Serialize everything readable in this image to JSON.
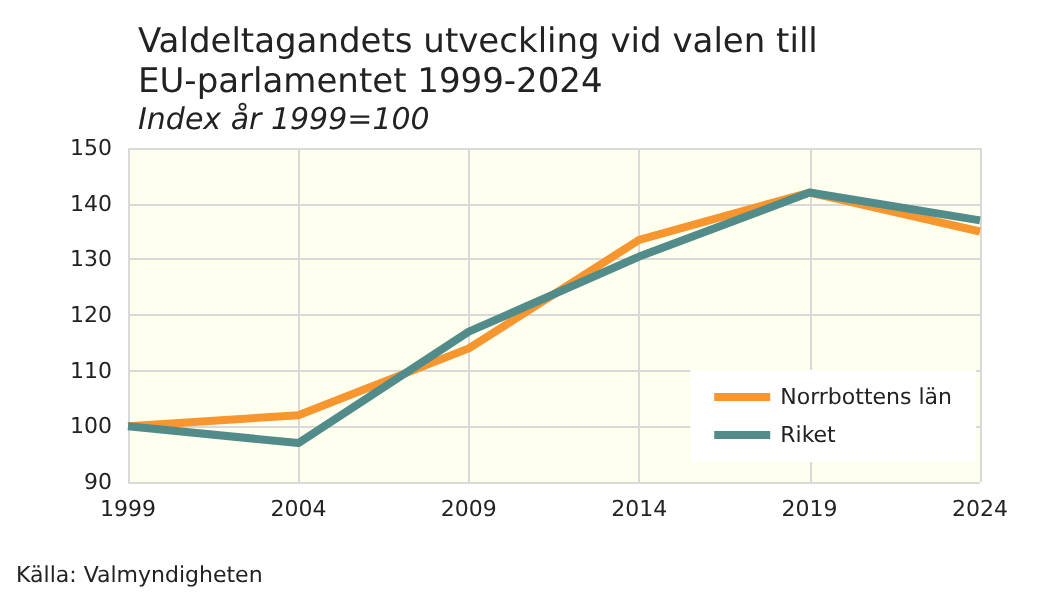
{
  "chart_data": {
    "type": "line",
    "title": "Valdeltagandets utveckling vid valen till EU-parlamentet 1999-2024",
    "subtitle": "Index år 1999=100",
    "x": [
      1999,
      2004,
      2009,
      2014,
      2019,
      2024
    ],
    "xlim": [
      1999,
      2024
    ],
    "xticks": [
      1999,
      2004,
      2009,
      2014,
      2019,
      2024
    ],
    "ylim": [
      90,
      150
    ],
    "yticks": [
      90,
      100,
      110,
      120,
      130,
      140,
      150
    ],
    "grid": true,
    "legend": "bottom right",
    "marker": "none",
    "series": [
      {
        "name": "Norrbottens län",
        "color": "#f7962e",
        "values": [
          100,
          102,
          114,
          133.5,
          142,
          135
        ]
      },
      {
        "name": "Riket",
        "color": "#528c8a",
        "values": [
          100,
          97,
          117,
          130.5,
          142,
          137
        ]
      }
    ],
    "annotations": [
      "Källa: Valmyndigheten"
    ]
  }
}
